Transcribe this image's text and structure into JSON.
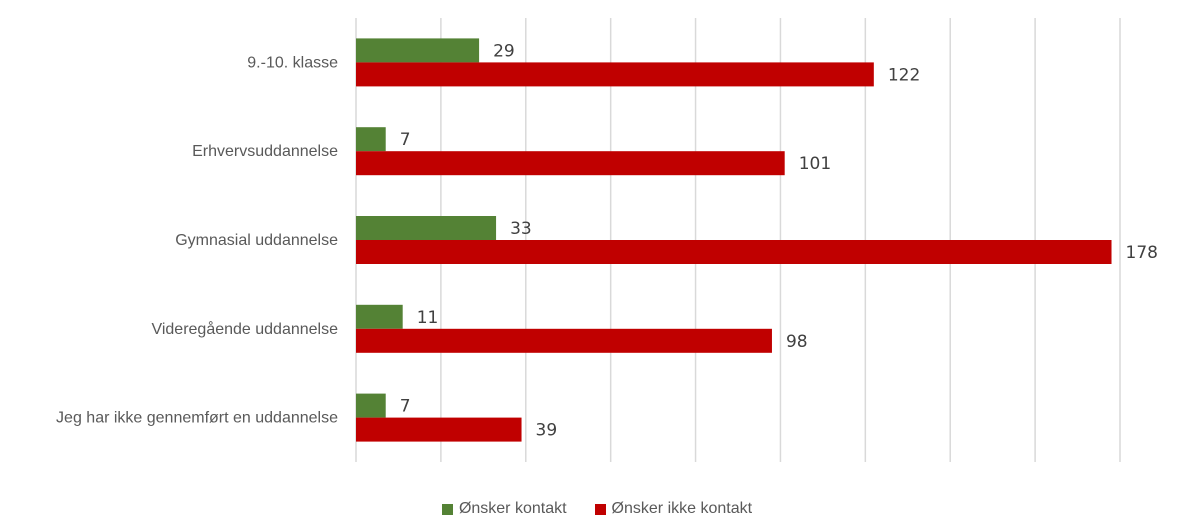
{
  "chart_data": {
    "type": "bar",
    "orientation": "horizontal",
    "categories": [
      "9.-10. klasse",
      "Erhvervsuddannelse",
      "Gymnasial uddannelse",
      "Videregående uddannelse",
      "Jeg har ikke gennemført en uddannelse"
    ],
    "series": [
      {
        "name": "Ønsker kontakt",
        "color": "#548235",
        "values": [
          29,
          7,
          33,
          11,
          7
        ]
      },
      {
        "name": "Ønsker ikke kontakt",
        "color": "#c00000",
        "values": [
          122,
          101,
          178,
          98,
          39
        ]
      }
    ],
    "xlim": [
      0,
      180
    ],
    "grid": true,
    "legend_position": "bottom"
  }
}
